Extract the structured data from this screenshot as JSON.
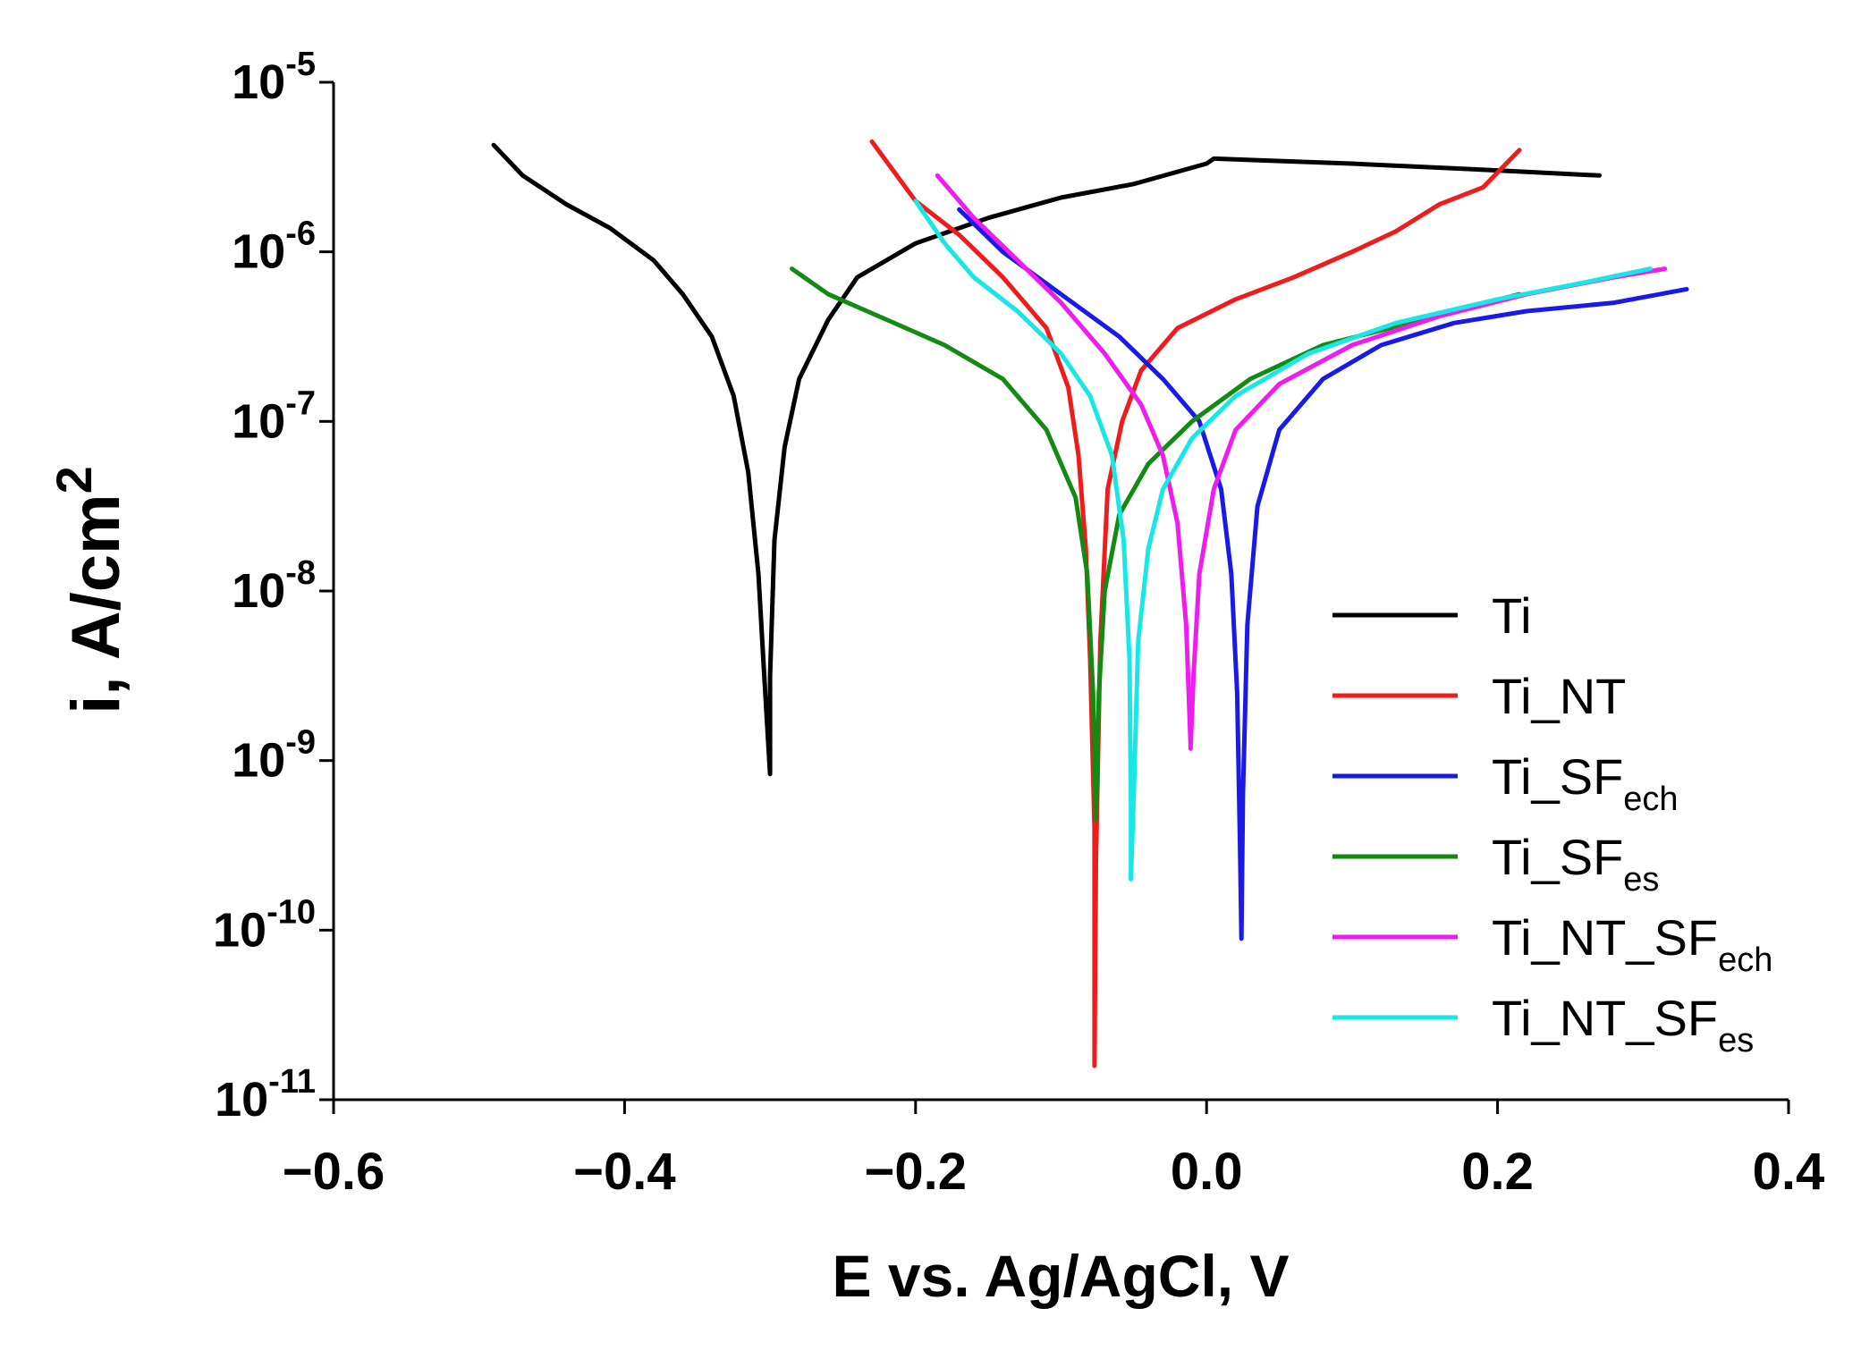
{
  "chart_data": {
    "type": "line",
    "title": "",
    "xlabel": "E vs. Ag/AgCl, V",
    "ylabel": "i, A/cm",
    "ylabel_sup": "2",
    "x_scale": "linear",
    "y_scale": "log",
    "xlim": [
      -0.6,
      0.4
    ],
    "ylim_exponents": [
      -11,
      -5
    ],
    "x_ticks": [
      -0.6,
      -0.4,
      -0.2,
      0.0,
      0.2,
      0.4
    ],
    "x_tick_labels": [
      "−0.6",
      "−0.4",
      "−0.2",
      "0.0",
      "0.2",
      "0.4"
    ],
    "y_tick_base": "10",
    "y_tick_exponents": [
      "-5",
      "-6",
      "-7",
      "-8",
      "-9",
      "-10",
      "-11"
    ],
    "legend_position": "lower-right",
    "series": [
      {
        "name": "Ti",
        "name_sub": "",
        "color": "#000000",
        "points": [
          [
            -0.49,
            -5.37
          ],
          [
            -0.47,
            -5.55
          ],
          [
            -0.44,
            -5.72
          ],
          [
            -0.41,
            -5.86
          ],
          [
            -0.38,
            -6.05
          ],
          [
            -0.36,
            -6.25
          ],
          [
            -0.34,
            -6.5
          ],
          [
            -0.325,
            -6.85
          ],
          [
            -0.315,
            -7.3
          ],
          [
            -0.308,
            -7.9
          ],
          [
            -0.304,
            -8.5
          ],
          [
            -0.3,
            -9.08
          ],
          [
            -0.3,
            -8.5
          ],
          [
            -0.297,
            -7.7
          ],
          [
            -0.29,
            -7.15
          ],
          [
            -0.28,
            -6.75
          ],
          [
            -0.26,
            -6.4
          ],
          [
            -0.24,
            -6.15
          ],
          [
            -0.2,
            -5.95
          ],
          [
            -0.15,
            -5.8
          ],
          [
            -0.1,
            -5.68
          ],
          [
            -0.05,
            -5.6
          ],
          [
            0.0,
            -5.48
          ],
          [
            0.005,
            -5.45
          ],
          [
            0.1,
            -5.48
          ],
          [
            0.2,
            -5.52
          ],
          [
            0.27,
            -5.55
          ]
        ]
      },
      {
        "name": "Ti_NT",
        "name_sub": "",
        "color": "#ee1c1c",
        "points": [
          [
            -0.23,
            -5.35
          ],
          [
            -0.2,
            -5.7
          ],
          [
            -0.17,
            -5.9
          ],
          [
            -0.14,
            -6.15
          ],
          [
            -0.11,
            -6.45
          ],
          [
            -0.095,
            -6.8
          ],
          [
            -0.088,
            -7.2
          ],
          [
            -0.083,
            -7.75
          ],
          [
            -0.08,
            -8.4
          ],
          [
            -0.077,
            -9.4
          ],
          [
            -0.077,
            -10.8
          ],
          [
            -0.076,
            -9.6
          ],
          [
            -0.073,
            -8.3
          ],
          [
            -0.068,
            -7.4
          ],
          [
            -0.058,
            -7.0
          ],
          [
            -0.045,
            -6.7
          ],
          [
            -0.02,
            -6.45
          ],
          [
            0.02,
            -6.28
          ],
          [
            0.06,
            -6.15
          ],
          [
            0.1,
            -6.0
          ],
          [
            0.13,
            -5.88
          ],
          [
            0.16,
            -5.72
          ],
          [
            0.19,
            -5.62
          ],
          [
            0.215,
            -5.4
          ]
        ]
      },
      {
        "name": "Ti_SF",
        "name_sub": "ech",
        "color": "#1a1ae6",
        "points": [
          [
            -0.17,
            -5.75
          ],
          [
            -0.14,
            -6.0
          ],
          [
            -0.1,
            -6.25
          ],
          [
            -0.06,
            -6.5
          ],
          [
            -0.03,
            -6.75
          ],
          [
            -0.005,
            -7.0
          ],
          [
            0.01,
            -7.4
          ],
          [
            0.017,
            -7.9
          ],
          [
            0.021,
            -8.6
          ],
          [
            0.023,
            -9.5
          ],
          [
            0.024,
            -10.05
          ],
          [
            0.025,
            -9.2
          ],
          [
            0.028,
            -8.2
          ],
          [
            0.035,
            -7.5
          ],
          [
            0.05,
            -7.05
          ],
          [
            0.08,
            -6.75
          ],
          [
            0.12,
            -6.55
          ],
          [
            0.17,
            -6.42
          ],
          [
            0.22,
            -6.35
          ],
          [
            0.28,
            -6.3
          ],
          [
            0.33,
            -6.22
          ]
        ]
      },
      {
        "name": "Ti_SF",
        "name_sub": "es",
        "color": "#138a13",
        "points": [
          [
            -0.285,
            -6.1
          ],
          [
            -0.26,
            -6.25
          ],
          [
            -0.22,
            -6.4
          ],
          [
            -0.18,
            -6.55
          ],
          [
            -0.14,
            -6.75
          ],
          [
            -0.11,
            -7.05
          ],
          [
            -0.09,
            -7.45
          ],
          [
            -0.082,
            -7.9
          ],
          [
            -0.078,
            -8.6
          ],
          [
            -0.076,
            -9.35
          ],
          [
            -0.074,
            -8.6
          ],
          [
            -0.07,
            -8.0
          ],
          [
            -0.06,
            -7.55
          ],
          [
            -0.04,
            -7.25
          ],
          [
            -0.01,
            -7.0
          ],
          [
            0.03,
            -6.75
          ],
          [
            0.08,
            -6.55
          ],
          [
            0.14,
            -6.42
          ],
          [
            0.215,
            -6.25
          ]
        ]
      },
      {
        "name": "Ti_NT_SF",
        "name_sub": "ech",
        "color": "#ee1cee",
        "points": [
          [
            -0.185,
            -5.55
          ],
          [
            -0.16,
            -5.8
          ],
          [
            -0.13,
            -6.05
          ],
          [
            -0.1,
            -6.3
          ],
          [
            -0.07,
            -6.6
          ],
          [
            -0.045,
            -6.9
          ],
          [
            -0.03,
            -7.2
          ],
          [
            -0.02,
            -7.6
          ],
          [
            -0.014,
            -8.2
          ],
          [
            -0.011,
            -8.9
          ],
          [
            -0.011,
            -8.93
          ],
          [
            -0.009,
            -8.5
          ],
          [
            -0.005,
            -7.9
          ],
          [
            0.005,
            -7.4
          ],
          [
            0.02,
            -7.05
          ],
          [
            0.05,
            -6.78
          ],
          [
            0.1,
            -6.55
          ],
          [
            0.16,
            -6.38
          ],
          [
            0.22,
            -6.25
          ],
          [
            0.28,
            -6.15
          ],
          [
            0.315,
            -6.1
          ]
        ]
      },
      {
        "name": "Ti_NT_SF",
        "name_sub": "es",
        "color": "#1ae6e6",
        "points": [
          [
            -0.2,
            -5.7
          ],
          [
            -0.18,
            -5.95
          ],
          [
            -0.16,
            -6.15
          ],
          [
            -0.13,
            -6.35
          ],
          [
            -0.1,
            -6.6
          ],
          [
            -0.08,
            -6.85
          ],
          [
            -0.065,
            -7.2
          ],
          [
            -0.057,
            -7.7
          ],
          [
            -0.053,
            -8.4
          ],
          [
            -0.052,
            -9.25
          ],
          [
            -0.052,
            -9.7
          ],
          [
            -0.05,
            -9.2
          ],
          [
            -0.047,
            -8.3
          ],
          [
            -0.04,
            -7.75
          ],
          [
            -0.03,
            -7.4
          ],
          [
            -0.01,
            -7.1
          ],
          [
            0.02,
            -6.85
          ],
          [
            0.07,
            -6.6
          ],
          [
            0.13,
            -6.42
          ],
          [
            0.2,
            -6.28
          ],
          [
            0.26,
            -6.18
          ],
          [
            0.305,
            -6.1
          ]
        ]
      }
    ]
  }
}
